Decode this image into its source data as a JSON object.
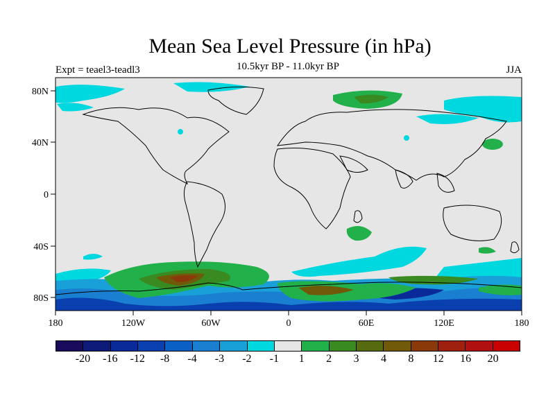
{
  "header": {
    "title": "Mean Sea Level Pressure (in hPa)",
    "subtitle": "10.5kyr BP - 11.0kyr BP",
    "left_label": "Expt = teael3-teadl3",
    "right_label": "JJA"
  },
  "map": {
    "projection": "cylindrical equidistant",
    "lon_range": [
      -180,
      180
    ],
    "lat_range": [
      -90,
      90
    ],
    "background_color": "#e6e6e6",
    "x_ticks": [
      "180",
      "120W",
      "60W",
      "0",
      "60E",
      "120E",
      "180"
    ],
    "y_ticks": [
      "80N",
      "40N",
      "0",
      "40S",
      "80S"
    ],
    "coastline_color": "#000000"
  },
  "colorbar": {
    "colors": [
      "#1a0a5c",
      "#0d1a78",
      "#0a2a9a",
      "#0a3fb0",
      "#0a60c4",
      "#1a7fd0",
      "#1aa0d8",
      "#00d8e0",
      "#e6e6e6",
      "#22b04a",
      "#3a8a22",
      "#566a10",
      "#705a0a",
      "#8a3a0a",
      "#a02010",
      "#b01010",
      "#c80000"
    ],
    "labels": [
      "-20",
      "-16",
      "-12",
      "-8",
      "-4",
      "-3",
      "-2",
      "-1",
      "1",
      "2",
      "3",
      "4",
      "8",
      "12",
      "16",
      "20"
    ]
  }
}
